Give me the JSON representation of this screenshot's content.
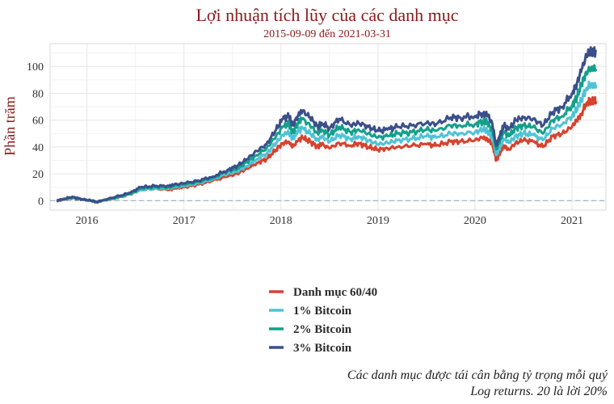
{
  "chart_data": {
    "type": "line",
    "title": "Lợi nhuận tích lũy của các danh mục",
    "subtitle": "2015-09-09 đến 2021-03-31",
    "xlabel": "",
    "ylabel": "Phần trăm",
    "xlim": [
      2015.62,
      2021.35
    ],
    "ylim": [
      -7,
      117
    ],
    "x_ticks": [
      2016,
      2017,
      2018,
      2019,
      2020,
      2021
    ],
    "x_tick_labels": [
      "2016",
      "2017",
      "2018",
      "2019",
      "2020",
      "2021"
    ],
    "y_ticks": [
      0,
      20,
      40,
      60,
      80,
      100
    ],
    "y_tick_labels": [
      "0",
      "20",
      "40",
      "60",
      "80",
      "100"
    ],
    "reference_line": 0,
    "x": [
      2015.69,
      2015.75,
      2015.85,
      2015.95,
      2016.05,
      2016.1,
      2016.15,
      2016.3,
      2016.45,
      2016.55,
      2016.7,
      2016.85,
      2016.9,
      2017.0,
      2017.15,
      2017.3,
      2017.45,
      2017.55,
      2017.65,
      2017.75,
      2017.85,
      2017.95,
      2018.02,
      2018.08,
      2018.12,
      2018.18,
      2018.22,
      2018.3,
      2018.38,
      2018.42,
      2018.5,
      2018.6,
      2018.72,
      2018.8,
      2018.9,
      2019.0,
      2019.1,
      2019.2,
      2019.35,
      2019.5,
      2019.6,
      2019.75,
      2019.85,
      2020.0,
      2020.08,
      2020.13,
      2020.18,
      2020.22,
      2020.26,
      2020.3,
      2020.35,
      2020.42,
      2020.5,
      2020.6,
      2020.7,
      2020.8,
      2020.9,
      2021.0,
      2021.05,
      2021.1,
      2021.15,
      2021.2,
      2021.25
    ],
    "series": [
      {
        "name": "Danh mục 60/40",
        "color": "#d6432f",
        "values": [
          0,
          1,
          2,
          1,
          0,
          -1,
          0,
          2,
          5,
          8,
          9,
          8,
          9,
          10,
          12,
          15,
          18,
          20,
          24,
          28,
          31,
          38,
          43,
          44,
          40,
          45,
          47,
          44,
          40,
          42,
          39,
          43,
          41,
          43,
          40,
          38,
          39,
          40,
          41,
          42,
          41,
          44,
          44,
          45,
          47,
          46,
          42,
          30,
          36,
          41,
          38,
          43,
          45,
          44,
          40,
          48,
          50,
          55,
          60,
          65,
          73,
          75,
          74
        ]
      },
      {
        "name": "1% Bitcoin",
        "color": "#4fc3d6",
        "values": [
          0,
          1,
          2,
          1,
          0,
          -1,
          0,
          2,
          5,
          8,
          9,
          9,
          10,
          11,
          13,
          16,
          20,
          22,
          26,
          31,
          35,
          43,
          49,
          51,
          46,
          52,
          54,
          50,
          45,
          48,
          44,
          49,
          46,
          48,
          45,
          42,
          43,
          45,
          46,
          48,
          47,
          50,
          50,
          51,
          53,
          52,
          47,
          34,
          40,
          46,
          43,
          48,
          50,
          49,
          45,
          54,
          57,
          63,
          68,
          76,
          84,
          87,
          86
        ]
      },
      {
        "name": "2% Bitcoin",
        "color": "#12a08a",
        "values": [
          0,
          1,
          2,
          1,
          0,
          -1,
          0,
          2,
          5,
          9,
          10,
          10,
          11,
          12,
          14,
          17,
          22,
          24,
          29,
          34,
          39,
          48,
          55,
          57,
          51,
          58,
          61,
          56,
          50,
          53,
          49,
          55,
          51,
          53,
          50,
          47,
          48,
          50,
          51,
          53,
          52,
          56,
          56,
          57,
          59,
          58,
          52,
          38,
          45,
          51,
          48,
          54,
          56,
          55,
          50,
          60,
          63,
          71,
          77,
          87,
          96,
          99,
          98
        ]
      },
      {
        "name": "3% Bitcoin",
        "color": "#3a4f8a",
        "values": [
          0,
          1,
          3,
          1,
          0,
          -1,
          0,
          3,
          6,
          10,
          11,
          11,
          12,
          13,
          15,
          18,
          23,
          26,
          31,
          37,
          42,
          53,
          61,
          63,
          56,
          64,
          67,
          62,
          55,
          58,
          54,
          61,
          56,
          58,
          55,
          52,
          53,
          55,
          56,
          58,
          57,
          62,
          62,
          63,
          65,
          64,
          57,
          41,
          49,
          56,
          53,
          60,
          62,
          61,
          56,
          66,
          70,
          80,
          87,
          98,
          108,
          112,
          111
        ]
      }
    ],
    "legend_position": "bottom-center",
    "grid": true
  },
  "caption": {
    "line1": "Các danh mục được tái cân bằng tỷ trọng mỗi quý",
    "line2": "Log returns. 20 là lời 20%"
  }
}
